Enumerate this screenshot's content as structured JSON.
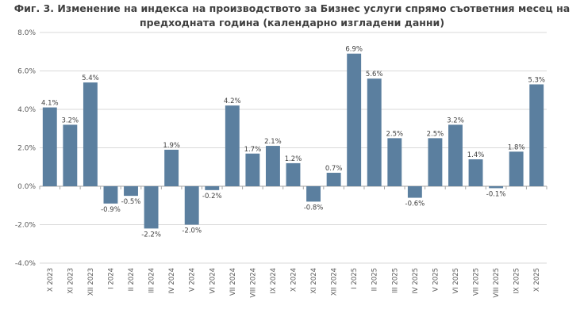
{
  "chart_data": {
    "type": "bar",
    "title_line1": "Фиг. 3. Изменение на индекса на производството за Бизнес услуги спрямо съответния месец на",
    "title_line2": "предходната година (календарно изгладени данни)",
    "xlabel": "",
    "ylabel": "",
    "ylim": [
      -4,
      8
    ],
    "y_ticks": [
      8,
      6,
      4,
      2,
      0,
      -2,
      -4
    ],
    "y_tick_labels": [
      "8.0%",
      "6.0%",
      "4.0%",
      "2.0%",
      "0.0%",
      "-2.0%",
      "-4.0%"
    ],
    "grid": true,
    "bar_color": "#5b7f9f",
    "categories": [
      "X 2023",
      "XI 2023",
      "XII 2023",
      "I 2024",
      "II 2024",
      "III 2024",
      "IV 2024",
      "V 2024",
      "VI 2024",
      "VII 2024",
      "VIII 2024",
      "IX 2024",
      "X 2024",
      "XI 2024",
      "XII 2024",
      "I 2025",
      "II 2025",
      "III 2025",
      "IV 2025",
      "V 2025",
      "VI 2025",
      "VII 2025",
      "VIII 2025",
      "IX 2025",
      "X 2025"
    ],
    "values": [
      4.1,
      3.2,
      5.4,
      -0.9,
      -0.5,
      -2.2,
      1.9,
      -2.0,
      -0.2,
      4.2,
      1.7,
      2.1,
      1.2,
      -0.8,
      0.7,
      6.9,
      5.6,
      2.5,
      -0.6,
      2.5,
      3.2,
      1.4,
      -0.1,
      1.8,
      5.3
    ],
    "value_labels": [
      "4.1%",
      "3.2%",
      "5.4%",
      "-0.9%",
      "-0.5%",
      "-2.2%",
      "1.9%",
      "-2.0%",
      "-0.2%",
      "4.2%",
      "1.7%",
      "2.1%",
      "1.2%",
      "-0.8%",
      "0.7%",
      "6.9%",
      "5.6%",
      "2.5%",
      "-0.6%",
      "2.5%",
      "3.2%",
      "1.4%",
      "-0.1%",
      "1.8%",
      "5.3%"
    ]
  }
}
